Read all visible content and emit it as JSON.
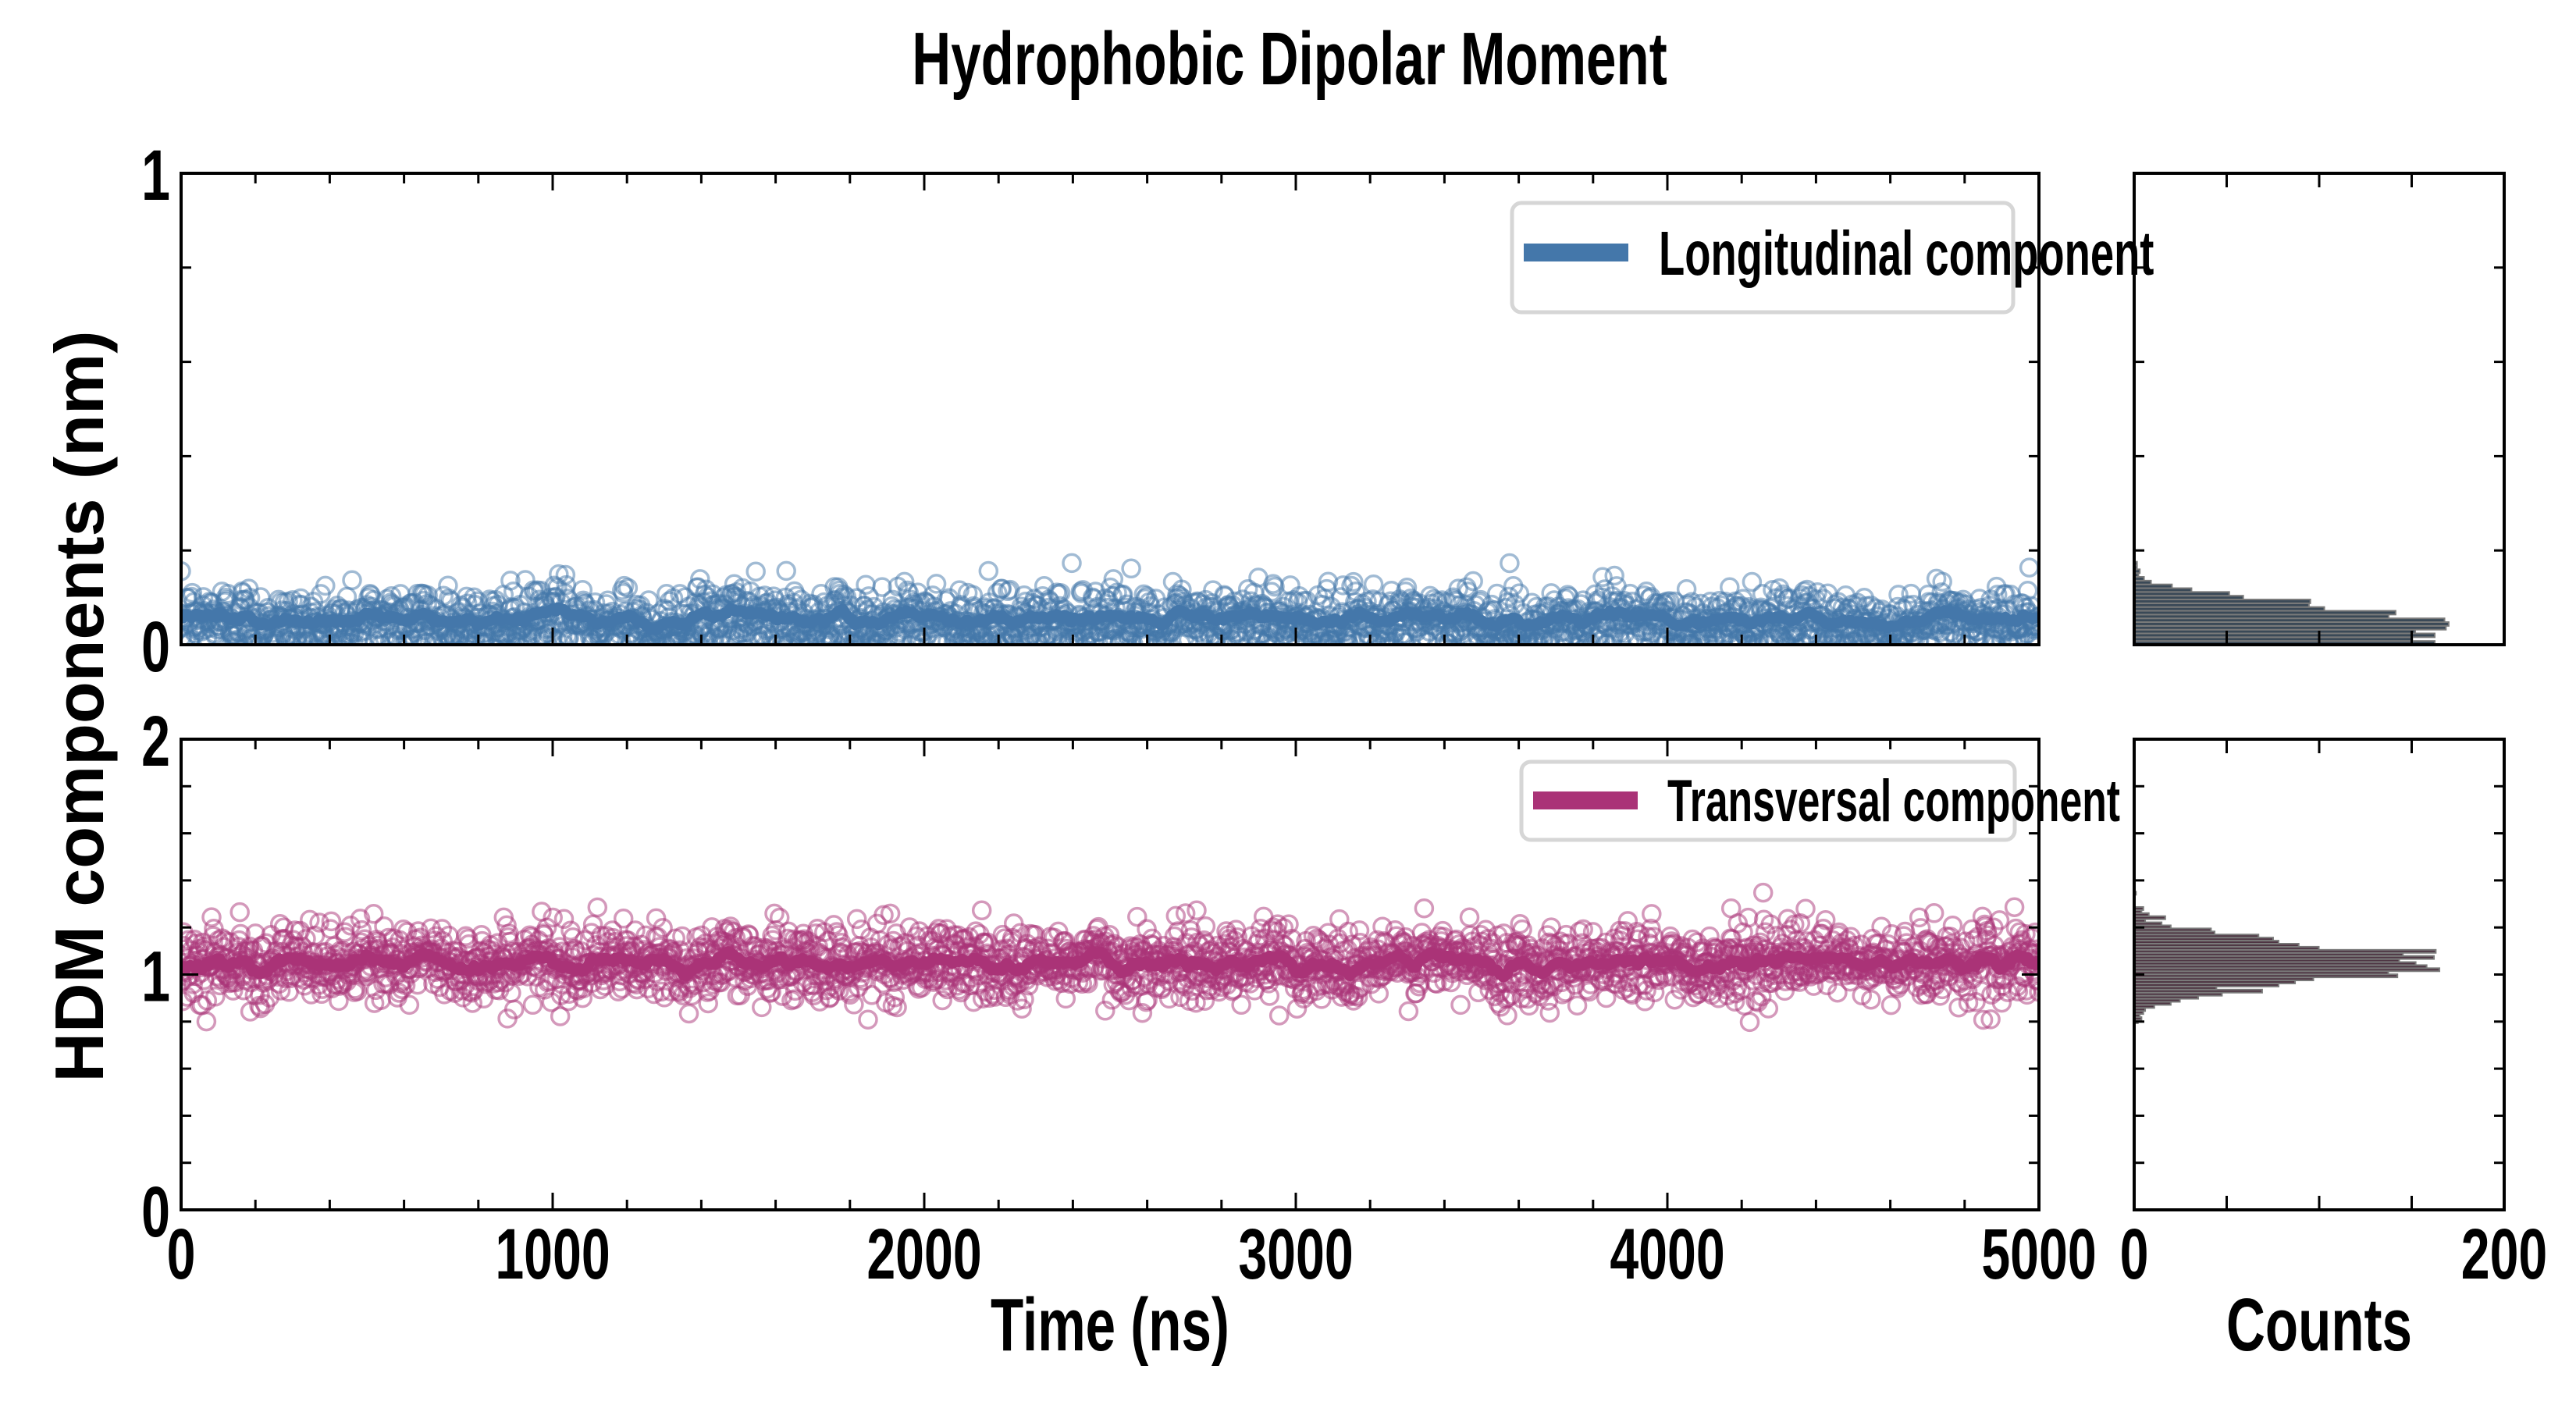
{
  "chart_data": [
    {
      "type": "scatter",
      "title": "Hydrophobic Dipolar Moment",
      "panel": "top",
      "xlabel": "Time (ns)",
      "ylabel": "HDM components (nm)",
      "xlim": [
        0,
        5000
      ],
      "ylim": [
        0,
        1
      ],
      "xticks": [
        0,
        1000,
        2000,
        3000,
        4000,
        5000
      ],
      "xtick_labels": [
        "0",
        "1000",
        "2000",
        "3000",
        "4000",
        "5000"
      ],
      "yticks": [
        0,
        1
      ],
      "ytick_labels": [
        "0",
        "1"
      ],
      "legend": {
        "label": "Longitudinal component",
        "placement": "top-right"
      },
      "series": {
        "name": "Longitudinal component",
        "color": "#4477aa",
        "n_points": 2500,
        "mean": 0.045,
        "std": 0.04,
        "min": 0.0,
        "max": 0.25,
        "running_mean": 0.05
      },
      "histogram": {
        "xlabel": "Counts",
        "xlim": [
          0,
          200
        ],
        "xtick_labels": [
          "0",
          "200"
        ],
        "peak_count": 170,
        "peak_at": 0.02,
        "color": "#253545"
      }
    },
    {
      "type": "scatter",
      "panel": "bottom",
      "xlim": [
        0,
        5000
      ],
      "ylim": [
        0,
        2
      ],
      "yticks": [
        0,
        1,
        2
      ],
      "ytick_labels": [
        "0",
        "1",
        "2"
      ],
      "legend": {
        "label": "Transversal component",
        "placement": "top-right"
      },
      "series": {
        "name": "Transversal component",
        "color": "#aa3377",
        "n_points": 2500,
        "mean": 1.05,
        "std": 0.08,
        "min": 0.75,
        "max": 1.37,
        "running_mean": 1.05
      },
      "histogram": {
        "xlim": [
          0,
          200
        ],
        "peak_count": 165,
        "peak_at": 1.06,
        "color": "#3b1f2f"
      }
    }
  ]
}
